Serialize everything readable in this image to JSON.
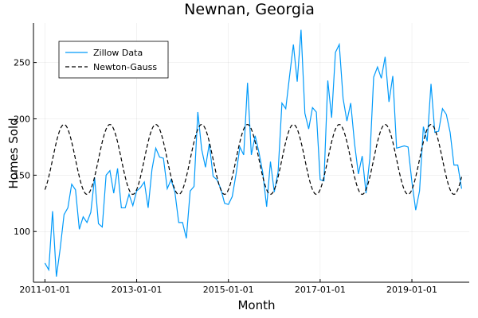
{
  "chart_data": {
    "type": "line",
    "title": "Newnan, Georgia",
    "xlabel": "Month",
    "ylabel": "Homes Sold",
    "x_start": "2011-01",
    "x_range_months": [
      -3,
      111
    ],
    "ylim": [
      55,
      285
    ],
    "xticks": [
      {
        "month": 0,
        "label": "2011-01-01"
      },
      {
        "month": 24,
        "label": "2013-01-01"
      },
      {
        "month": 48,
        "label": "2015-01-01"
      },
      {
        "month": 72,
        "label": "2017-01-01"
      },
      {
        "month": 96,
        "label": "2019-01-01"
      }
    ],
    "yticks": [
      100,
      150,
      200,
      250
    ],
    "grid": true,
    "legend_position": "top-left",
    "series": [
      {
        "name": "Zillow Data",
        "color": "#009AFA",
        "style": "solid",
        "values": [
          72,
          66,
          118,
          60,
          85,
          115,
          121,
          142,
          137,
          102,
          113,
          108,
          117,
          148,
          107,
          104,
          150,
          154,
          134,
          156,
          121,
          121,
          133,
          123,
          136,
          139,
          144,
          121,
          155,
          174,
          166,
          165,
          138,
          146,
          135,
          108,
          108,
          94,
          136,
          140,
          206,
          173,
          157,
          178,
          149,
          146,
          138,
          125,
          124,
          131,
          151,
          175,
          168,
          232,
          168,
          185,
          170,
          152,
          122,
          162,
          135,
          153,
          214,
          209,
          238,
          266,
          233,
          279,
          205,
          191,
          210,
          206,
          146,
          145,
          234,
          201,
          259,
          266,
          218,
          198,
          214,
          178,
          151,
          167,
          134,
          165,
          237,
          246,
          236,
          255,
          215,
          238,
          174,
          175,
          176,
          175,
          144,
          119,
          136,
          193,
          180,
          231,
          188,
          189,
          209,
          204,
          188,
          159,
          159,
          138
        ]
      },
      {
        "name": "Newton-Gauss",
        "color": "#000000",
        "style": "dashed",
        "period": 12,
        "mean": 164,
        "amplitude": 31,
        "peak_month_offset": 5
      }
    ]
  }
}
